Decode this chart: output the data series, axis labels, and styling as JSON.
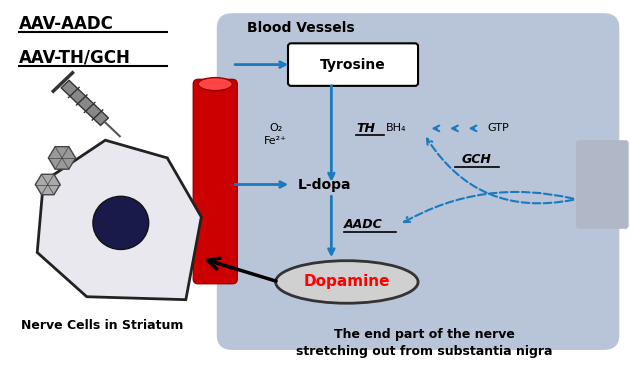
{
  "bg_color": "#ffffff",
  "cell_bg": "#b8c4d8",
  "tyrosine_box": "#ffffff",
  "dopamine_fill": "#d0d0d0",
  "dopamine_text": "#ff0000",
  "blood_vessel_color": "#cc0000",
  "arrow_blue": "#1a7abf",
  "nerve_cell_fill": "#e8e8ee",
  "nerve_cell_edge": "#222222",
  "nucleus_color": "#1a1a4a",
  "title1": "AAV-AADC",
  "title2": "AAV-TH/GCH",
  "blood_vessels_label": "Blood Vessels",
  "tyrosine_label": "Tyrosine",
  "o2_fe_label": "O₂\nFe²⁺",
  "th_label": "TH",
  "bh4_label": "BH₄",
  "gtp_label": "GTP",
  "gch_label": "GCH",
  "ldopa_label": "L-dopa",
  "aadc_label": "AADC",
  "dopamine_label": "Dopamine",
  "nerve_label1": "Nerve Cells in Striatum",
  "nerve_label2": "The end part of the nerve\nstretching out from substantia nigra",
  "fig_width": 6.3,
  "fig_height": 3.69,
  "dpi": 100
}
